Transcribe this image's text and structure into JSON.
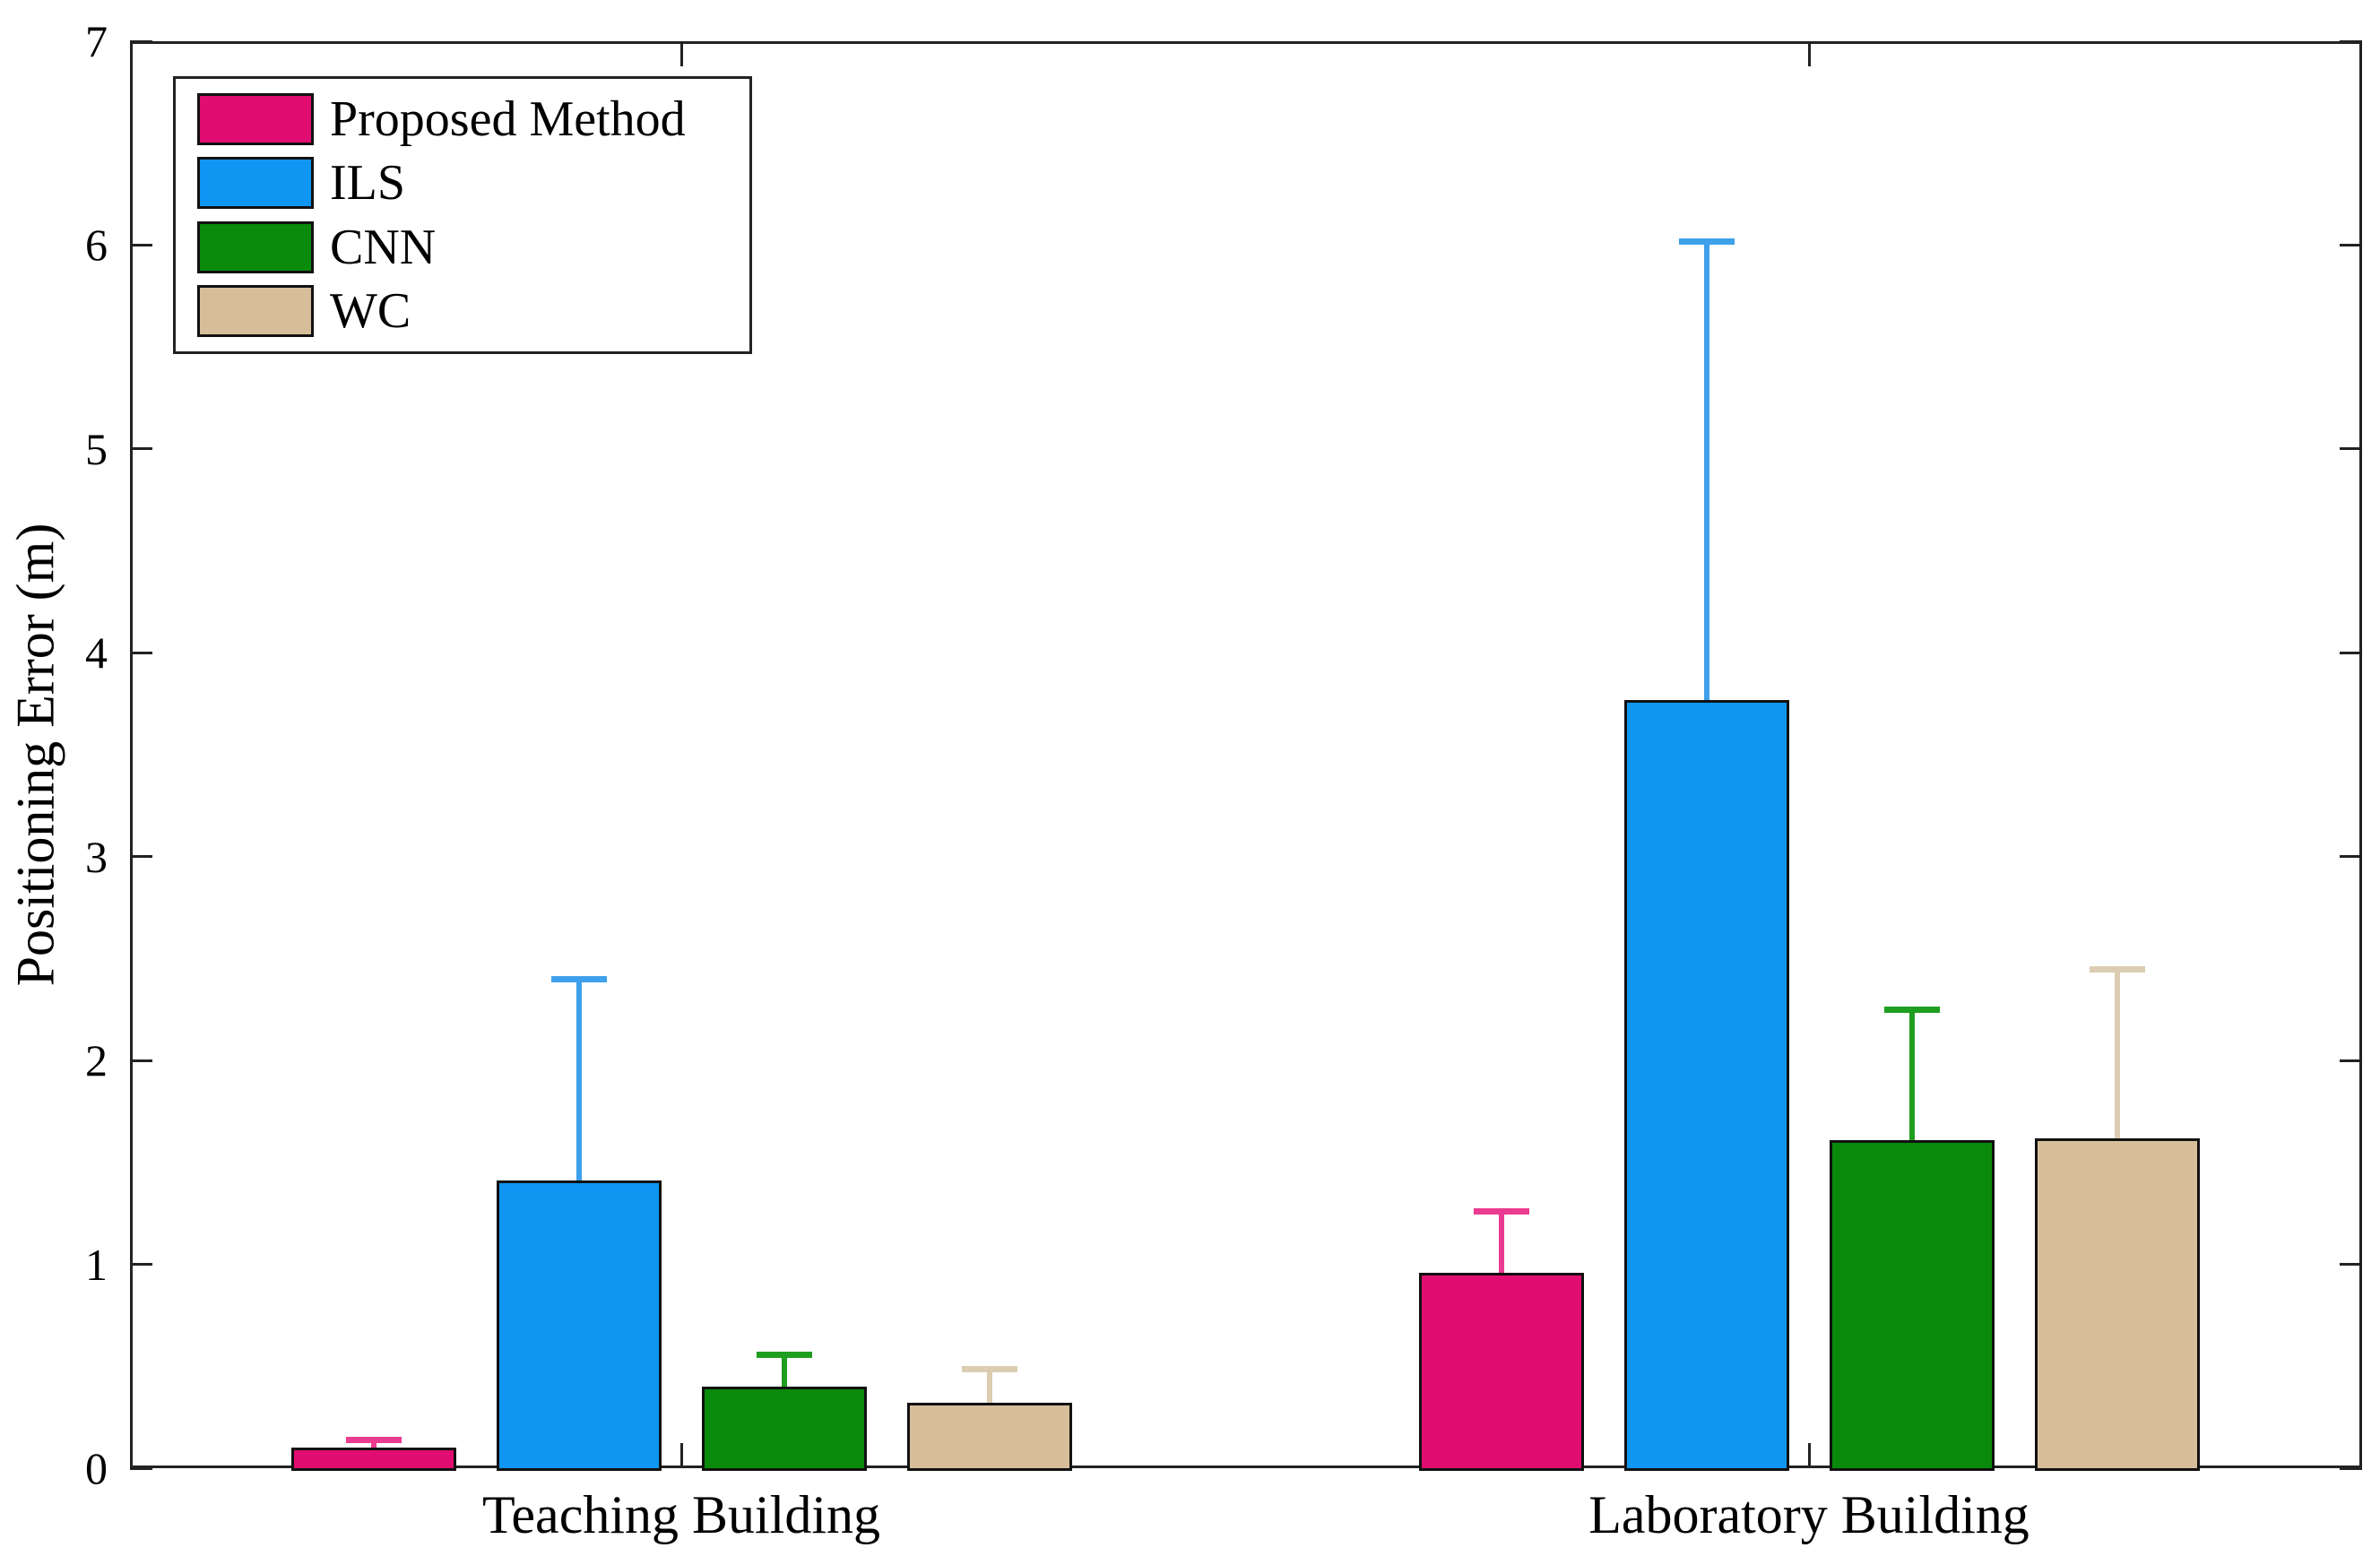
{
  "figure": {
    "ylabel": "Positioning Error (m)",
    "background": "#ffffff",
    "axis_color": "#222222"
  },
  "chart_data": {
    "type": "bar",
    "subtype": "grouped-with-error-bars",
    "title": "",
    "xlabel": "",
    "ylabel": "Positioning Error (m)",
    "categories": [
      "Teaching Building",
      "Laboratory Building"
    ],
    "series": [
      {
        "name": "Proposed Method",
        "values": [
          0.1,
          0.96
        ],
        "errors_plus": [
          0.04,
          0.3
        ],
        "color": "#e10d70",
        "error_color": "#ea3c90"
      },
      {
        "name": "ILS",
        "values": [
          1.41,
          3.77
        ],
        "errors_plus": [
          0.99,
          2.25
        ],
        "color": "#0e96f2",
        "error_color": "#3fa0ec"
      },
      {
        "name": "CNN",
        "values": [
          0.4,
          1.61
        ],
        "errors_plus": [
          0.16,
          0.64
        ],
        "color": "#0a8a0a",
        "error_color": "#1f9e1f"
      },
      {
        "name": "WC",
        "values": [
          0.32,
          1.62
        ],
        "errors_plus": [
          0.17,
          0.83
        ],
        "color": "#d7be9a",
        "error_color": "#dccdb2"
      }
    ],
    "ylim": [
      0,
      7
    ],
    "yticks": [
      0,
      1,
      2,
      3,
      4,
      5,
      6,
      7
    ],
    "grid": false,
    "tick_direction": "in",
    "legend_position": "top-left",
    "error_bars": "upper_only"
  }
}
